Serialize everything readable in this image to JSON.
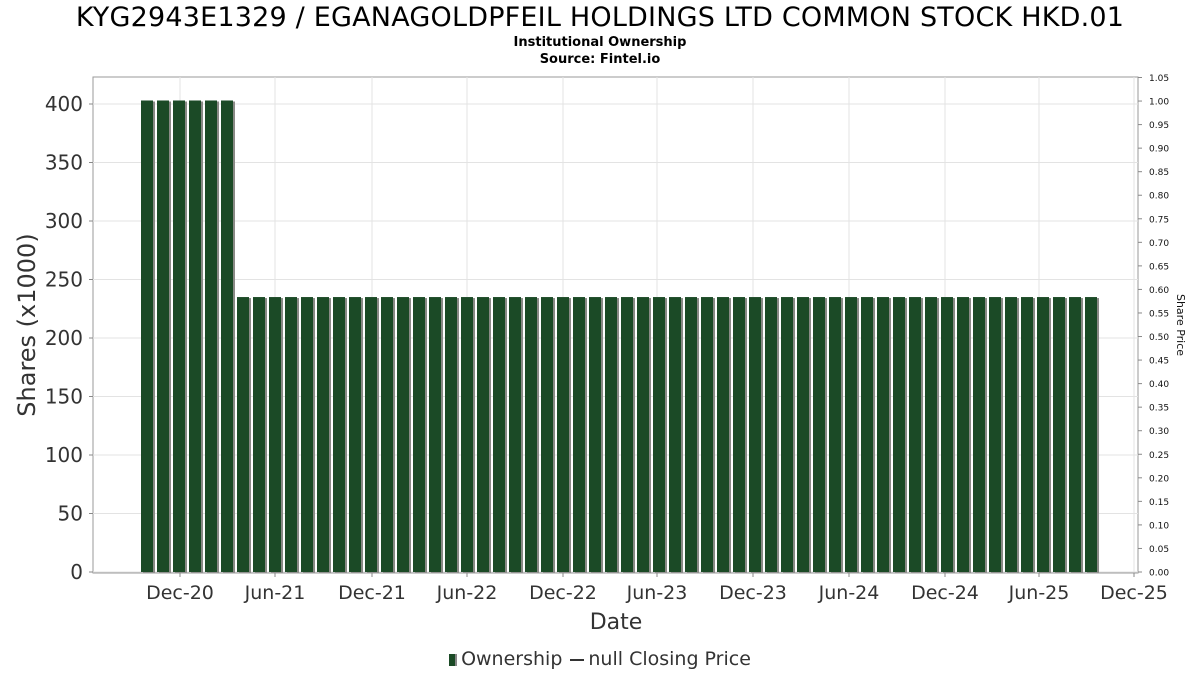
{
  "chart_data": {
    "type": "bar",
    "title": "KYG2943E1329 / EGANAGOLDPFEIL HOLDINGS LTD COMMON STOCK HKD.01",
    "subtitle_1": "Institutional Ownership",
    "subtitle_2": "Source: Fintel.io",
    "xlabel": "Date",
    "ylabel": "Shares (x1000)",
    "y2label": "Share Price",
    "ylim": [
      0,
      420
    ],
    "y_ticks": [
      0,
      50,
      100,
      150,
      200,
      250,
      300,
      350,
      400
    ],
    "y2lim": [
      0,
      1.05
    ],
    "y2_ticks": [
      "0.00",
      "0.05",
      "0.10",
      "0.15",
      "0.20",
      "0.25",
      "0.30",
      "0.35",
      "0.40",
      "0.45",
      "0.50",
      "0.55",
      "0.60",
      "0.65",
      "0.70",
      "0.75",
      "0.80",
      "0.85",
      "0.90",
      "0.95",
      "1.00",
      "1.05"
    ],
    "x_ticks": [
      "Dec-20",
      "Jun-21",
      "Dec-21",
      "Jun-22",
      "Dec-22",
      "Jun-23",
      "Dec-23",
      "Jun-24",
      "Dec-24",
      "Jun-25",
      "Dec-25"
    ],
    "series": [
      {
        "name": "Ownership",
        "color": "#1b4a26",
        "values": [
          403,
          403,
          403,
          403,
          403,
          403,
          235,
          235,
          235,
          235,
          235,
          235,
          235,
          235,
          235,
          235,
          235,
          235,
          235,
          235,
          235,
          235,
          235,
          235,
          235,
          235,
          235,
          235,
          235,
          235,
          235,
          235,
          235,
          235,
          235,
          235,
          235,
          235,
          235,
          235,
          235,
          235,
          235,
          235,
          235,
          235,
          235,
          235,
          235,
          235,
          235,
          235,
          235,
          235,
          235,
          235,
          235,
          235,
          235,
          235
        ]
      }
    ],
    "legend": {
      "position": "bottom",
      "items": [
        "Ownership",
        "null Closing Price"
      ]
    },
    "grid": true
  }
}
